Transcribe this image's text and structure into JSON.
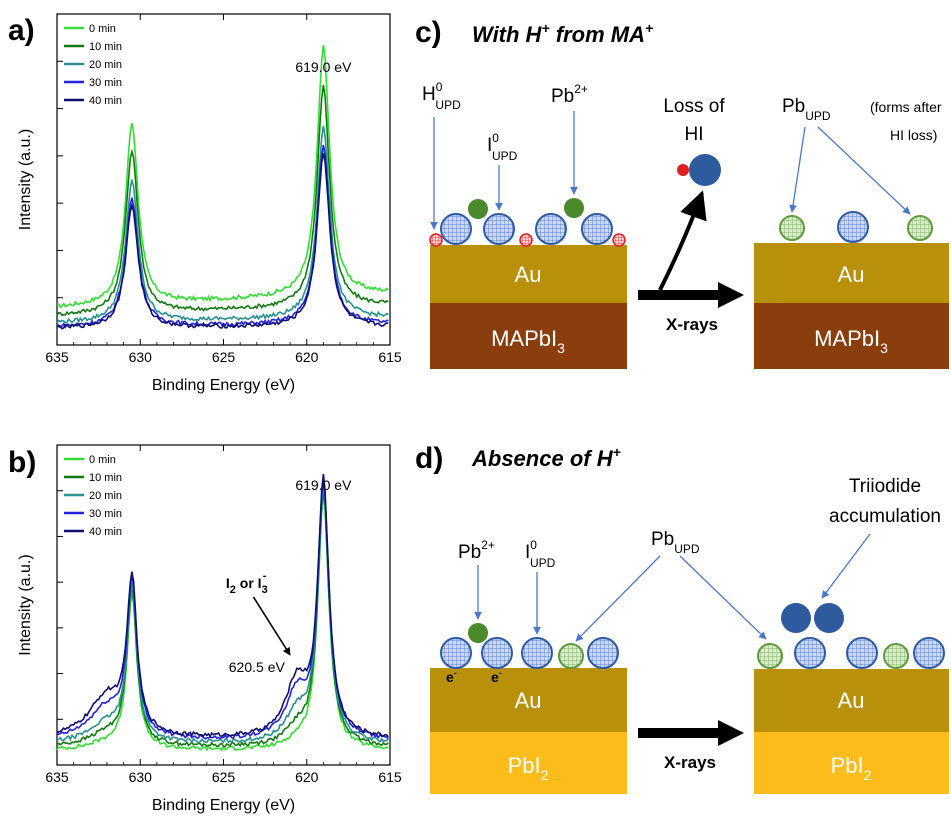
{
  "panels": {
    "a": {
      "label": "a)"
    },
    "b": {
      "label": "b)"
    },
    "c": {
      "label": "c)",
      "title_pre": "With H",
      "title_sup1": "+",
      "title_mid": " from MA",
      "title_sup2": "+"
    },
    "d": {
      "label": "d)",
      "title_pre": "Absence of H",
      "title_sup": "+"
    }
  },
  "chart_data": [
    {
      "type": "line",
      "panel": "a",
      "xlabel": "Binding Energy (eV)",
      "ylabel": "Intensity (a.u.)",
      "xlim": [
        635,
        615
      ],
      "xticks": [
        "635",
        "630",
        "625",
        "620",
        "615"
      ],
      "annotations": [
        {
          "text": "619.0 eV"
        }
      ],
      "series": [
        {
          "name": "0 min",
          "color": "#33dd33",
          "baseline": 0.112,
          "slope": 0.0022,
          "peak1": 0.66,
          "peak2": 0.865
        },
        {
          "name": "10 min",
          "color": "#137a13",
          "baseline": 0.088,
          "slope": 0.0016,
          "peak1": 0.58,
          "peak2": 0.755
        },
        {
          "name": "20 min",
          "color": "#2a9090",
          "baseline": 0.066,
          "slope": 0.0008,
          "peak1": 0.49,
          "peak2": 0.645
        },
        {
          "name": "30 min",
          "color": "#2323dd",
          "baseline": 0.054,
          "slope": 0.0004,
          "peak1": 0.44,
          "peak2": 0.595
        },
        {
          "name": "40 min",
          "color": "#101070",
          "baseline": 0.05,
          "slope": 0.0002,
          "peak1": 0.42,
          "peak2": 0.575
        }
      ]
    },
    {
      "type": "line",
      "panel": "b",
      "xlabel": "Binding Energy (eV)",
      "ylabel": "Intensity (a.u.)",
      "xlim": [
        635,
        615
      ],
      "xticks": [
        "635",
        "630",
        "625",
        "620",
        "615"
      ],
      "annotations": [
        {
          "text": "619.0 eV"
        },
        {
          "text": "620.5 eV"
        },
        {
          "text": "I",
          "sub1": "2",
          "mid": " or I",
          "sub2": "3",
          "sup": "-"
        }
      ],
      "series": [
        {
          "name": "0 min",
          "color": "#33dd33",
          "baseline": 0.045,
          "sh620": 0.02,
          "sh632": 0.02,
          "peak1": 0.53,
          "peak2": 0.84
        },
        {
          "name": "10 min",
          "color": "#137a13",
          "baseline": 0.055,
          "sh620": 0.05,
          "sh632": 0.04,
          "peak1": 0.54,
          "peak2": 0.85
        },
        {
          "name": "20 min",
          "color": "#2a9090",
          "baseline": 0.065,
          "sh620": 0.09,
          "sh632": 0.06,
          "peak1": 0.54,
          "peak2": 0.85
        },
        {
          "name": "30 min",
          "color": "#2323dd",
          "baseline": 0.075,
          "sh620": 0.14,
          "sh632": 0.1,
          "peak1": 0.55,
          "peak2": 0.86
        },
        {
          "name": "40 min",
          "color": "#101070",
          "baseline": 0.08,
          "sh620": 0.17,
          "sh632": 0.13,
          "peak1": 0.55,
          "peak2": 0.87
        }
      ]
    }
  ],
  "schematic_c": {
    "h0": {
      "base": "H",
      "sup": "0",
      "sub": "UPD"
    },
    "i0": {
      "base": "I",
      "sup": "0",
      "sub": "UPD"
    },
    "pb2": {
      "base": "Pb",
      "sup": "2+"
    },
    "loss_line1": "Loss of",
    "loss_line2": "HI",
    "pbupd": {
      "base": "Pb",
      "sub": "UPD"
    },
    "forms_line1": "(forms after",
    "forms_line2": "HI loss)",
    "au": "Au",
    "mapbi": "MAPbI",
    "mapbi_sub": "3",
    "xrays": "X-rays"
  },
  "schematic_d": {
    "pb2": {
      "base": "Pb",
      "sup": "2+"
    },
    "i0": {
      "base": "I",
      "sup": "0",
      "sub": "UPD"
    },
    "pbupd": {
      "base": "Pb",
      "sub": "UPD"
    },
    "tri_line1": "Triiodide",
    "tri_line2": "accumulation",
    "electron": "e",
    "electron_sup": "-",
    "au": "Au",
    "pbi": "PbI",
    "pbi_sub": "2",
    "xrays": "X-rays"
  },
  "colors": {
    "au": "#b8900a",
    "mapbi": "#8a3e0e",
    "pbi2": "#fbbc1c",
    "iodine_circle": "#2f6fc0",
    "pb_green": "#4a8a2a",
    "pbupd_green": "#7fb85a",
    "h_red": "#e02020",
    "pointer": "#4a78c8"
  }
}
